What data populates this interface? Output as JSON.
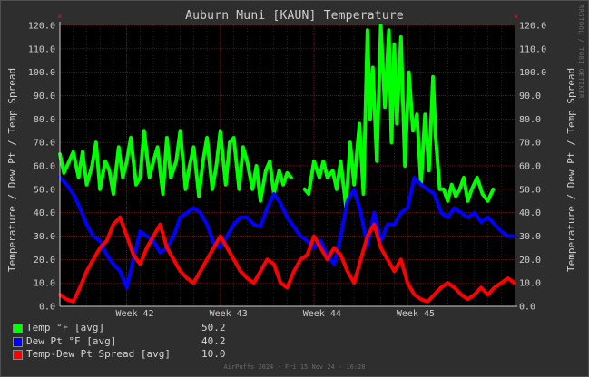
{
  "chart_data": {
    "type": "line",
    "title": "Auburn Muni [KAUN] Temperature",
    "ylabel": "Temperature / Dew Pt / Temp Spread",
    "ylim": [
      0,
      120
    ],
    "yticks": [
      "0.0",
      "10.0",
      "20.0",
      "30.0",
      "40.0",
      "50.0",
      "60.0",
      "70.0",
      "80.0",
      "90.0",
      "100.0",
      "110.0",
      "120.0"
    ],
    "xlim": [
      0,
      34
    ],
    "xticks": [
      {
        "label": "Week 42",
        "x": 5
      },
      {
        "label": "Week 43",
        "x": 12
      },
      {
        "label": "Week 44",
        "x": 19
      },
      {
        "label": "Week 45",
        "x": 26
      }
    ],
    "grid": true,
    "legend_position": "bottom-left",
    "series": [
      {
        "name": "Temp °F [avg]",
        "color": "#00ff00",
        "summary": "50.2",
        "values": [
          [
            0,
            65
          ],
          [
            0.3,
            57
          ],
          [
            0.7,
            62
          ],
          [
            1,
            66
          ],
          [
            1.4,
            55
          ],
          [
            1.7,
            66
          ],
          [
            2,
            52
          ],
          [
            2.4,
            60
          ],
          [
            2.7,
            70
          ],
          [
            3,
            50
          ],
          [
            3.4,
            62
          ],
          [
            3.7,
            58
          ],
          [
            4,
            48
          ],
          [
            4.4,
            68
          ],
          [
            4.7,
            55
          ],
          [
            5,
            62
          ],
          [
            5.3,
            72
          ],
          [
            5.7,
            52
          ],
          [
            6,
            55
          ],
          [
            6.3,
            75
          ],
          [
            6.7,
            55
          ],
          [
            7,
            62
          ],
          [
            7.3,
            68
          ],
          [
            7.7,
            48
          ],
          [
            8,
            72
          ],
          [
            8.3,
            55
          ],
          [
            8.7,
            62
          ],
          [
            9,
            75
          ],
          [
            9.4,
            50
          ],
          [
            9.7,
            60
          ],
          [
            10,
            68
          ],
          [
            10.4,
            47
          ],
          [
            10.7,
            62
          ],
          [
            11,
            72
          ],
          [
            11.4,
            50
          ],
          [
            11.7,
            60
          ],
          [
            12,
            75
          ],
          [
            12.4,
            52
          ],
          [
            12.7,
            70
          ],
          [
            13,
            72
          ],
          [
            13.4,
            50
          ],
          [
            13.7,
            68
          ],
          [
            14,
            62
          ],
          [
            14.4,
            50
          ],
          [
            14.7,
            60
          ],
          [
            15,
            45
          ],
          [
            15.4,
            58
          ],
          [
            15.7,
            62
          ],
          [
            16,
            48
          ],
          [
            16.4,
            58
          ],
          [
            16.7,
            52
          ],
          [
            17,
            57
          ],
          [
            17.3,
            55
          ],
          [
            18.3,
            50
          ],
          [
            18.6,
            48
          ],
          [
            19,
            62
          ],
          [
            19.4,
            55
          ],
          [
            19.7,
            62
          ],
          [
            20,
            55
          ],
          [
            20.4,
            58
          ],
          [
            20.7,
            50
          ],
          [
            21,
            62
          ],
          [
            21.4,
            42
          ],
          [
            21.7,
            70
          ],
          [
            22,
            52
          ],
          [
            22.4,
            78
          ],
          [
            22.7,
            48
          ],
          [
            23,
            118
          ],
          [
            23.2,
            80
          ],
          [
            23.4,
            102
          ],
          [
            23.7,
            62
          ],
          [
            24,
            120
          ],
          [
            24.3,
            85
          ],
          [
            24.6,
            118
          ],
          [
            24.8,
            70
          ],
          [
            25,
            112
          ],
          [
            25.2,
            78
          ],
          [
            25.5,
            115
          ],
          [
            25.8,
            60
          ],
          [
            26.1,
            100
          ],
          [
            26.4,
            75
          ],
          [
            26.7,
            82
          ],
          [
            27,
            52
          ],
          [
            27.3,
            82
          ],
          [
            27.6,
            58
          ],
          [
            27.9,
            98
          ],
          [
            28.1,
            72
          ],
          [
            28.4,
            50
          ],
          [
            28.7,
            50
          ],
          [
            29,
            45
          ],
          [
            29.3,
            52
          ],
          [
            29.6,
            47
          ],
          [
            29.9,
            50
          ],
          [
            30.2,
            55
          ],
          [
            30.5,
            45
          ],
          [
            30.8,
            50
          ],
          [
            31.2,
            55
          ],
          [
            31.6,
            48
          ],
          [
            32,
            45
          ],
          [
            32.4,
            50
          ]
        ]
      },
      {
        "name": "Dew Pt °F [avg]",
        "color": "#0000ff",
        "summary": "40.2",
        "values": [
          [
            0,
            55
          ],
          [
            0.5,
            52
          ],
          [
            1,
            48
          ],
          [
            1.5,
            42
          ],
          [
            2,
            35
          ],
          [
            2.5,
            30
          ],
          [
            3,
            28
          ],
          [
            3.5,
            22
          ],
          [
            4,
            18
          ],
          [
            4.5,
            15
          ],
          [
            5,
            8
          ],
          [
            5.5,
            20
          ],
          [
            6,
            32
          ],
          [
            6.5,
            30
          ],
          [
            7,
            28
          ],
          [
            7.5,
            23
          ],
          [
            8,
            25
          ],
          [
            8.5,
            30
          ],
          [
            9,
            38
          ],
          [
            9.5,
            40
          ],
          [
            10,
            42
          ],
          [
            10.5,
            40
          ],
          [
            11,
            35
          ],
          [
            11.5,
            27
          ],
          [
            12,
            25
          ],
          [
            12.5,
            30
          ],
          [
            13,
            35
          ],
          [
            13.5,
            38
          ],
          [
            14,
            38
          ],
          [
            14.5,
            35
          ],
          [
            15,
            34
          ],
          [
            15.5,
            42
          ],
          [
            16,
            48
          ],
          [
            16.5,
            44
          ],
          [
            17,
            38
          ],
          [
            17.5,
            34
          ],
          [
            18,
            30
          ],
          [
            18.5,
            28
          ],
          [
            19,
            25
          ],
          [
            19.5,
            28
          ],
          [
            20,
            22
          ],
          [
            20.5,
            18
          ],
          [
            21,
            30
          ],
          [
            21.5,
            45
          ],
          [
            22,
            50
          ],
          [
            22.5,
            40
          ],
          [
            23,
            26
          ],
          [
            23.5,
            40
          ],
          [
            24,
            28
          ],
          [
            24.5,
            35
          ],
          [
            25,
            35
          ],
          [
            25.5,
            40
          ],
          [
            26,
            42
          ],
          [
            26.5,
            55
          ],
          [
            27,
            52
          ],
          [
            27.5,
            50
          ],
          [
            28,
            48
          ],
          [
            28.5,
            40
          ],
          [
            29,
            38
          ],
          [
            29.5,
            42
          ],
          [
            30,
            40
          ],
          [
            30.5,
            38
          ],
          [
            31,
            40
          ],
          [
            31.5,
            36
          ],
          [
            32,
            38
          ],
          [
            32.5,
            35
          ],
          [
            33,
            32
          ],
          [
            33.5,
            30
          ],
          [
            34,
            30
          ]
        ]
      },
      {
        "name": "Temp-Dew Pt Spread [avg]",
        "color": "#ff0000",
        "summary": "10.0",
        "values": [
          [
            0,
            5
          ],
          [
            0.5,
            3
          ],
          [
            1,
            2
          ],
          [
            1.5,
            8
          ],
          [
            2,
            15
          ],
          [
            2.5,
            20
          ],
          [
            3,
            25
          ],
          [
            3.5,
            28
          ],
          [
            4,
            35
          ],
          [
            4.5,
            38
          ],
          [
            5,
            30
          ],
          [
            5.5,
            22
          ],
          [
            6,
            18
          ],
          [
            6.5,
            25
          ],
          [
            7,
            30
          ],
          [
            7.5,
            35
          ],
          [
            8,
            25
          ],
          [
            8.5,
            20
          ],
          [
            9,
            15
          ],
          [
            9.5,
            12
          ],
          [
            10,
            10
          ],
          [
            10.5,
            15
          ],
          [
            11,
            20
          ],
          [
            11.5,
            25
          ],
          [
            12,
            30
          ],
          [
            12.5,
            25
          ],
          [
            13,
            20
          ],
          [
            13.5,
            15
          ],
          [
            14,
            12
          ],
          [
            14.5,
            10
          ],
          [
            15,
            15
          ],
          [
            15.5,
            20
          ],
          [
            16,
            18
          ],
          [
            16.5,
            10
          ],
          [
            17,
            8
          ],
          [
            17.5,
            15
          ],
          [
            18,
            20
          ],
          [
            18.5,
            22
          ],
          [
            19,
            30
          ],
          [
            19.5,
            25
          ],
          [
            20,
            20
          ],
          [
            20.5,
            25
          ],
          [
            21,
            22
          ],
          [
            21.5,
            15
          ],
          [
            22,
            10
          ],
          [
            22.5,
            20
          ],
          [
            23,
            30
          ],
          [
            23.5,
            35
          ],
          [
            24,
            25
          ],
          [
            24.5,
            20
          ],
          [
            25,
            15
          ],
          [
            25.5,
            20
          ],
          [
            26,
            10
          ],
          [
            26.5,
            5
          ],
          [
            27,
            3
          ],
          [
            27.5,
            2
          ],
          [
            28,
            5
          ],
          [
            28.5,
            8
          ],
          [
            29,
            10
          ],
          [
            29.5,
            8
          ],
          [
            30,
            5
          ],
          [
            30.5,
            3
          ],
          [
            31,
            5
          ],
          [
            31.5,
            8
          ],
          [
            32,
            5
          ],
          [
            32.5,
            8
          ],
          [
            33,
            10
          ],
          [
            33.5,
            12
          ],
          [
            34,
            10
          ]
        ]
      }
    ]
  },
  "legend": [
    {
      "label": "Temp °F [avg]",
      "value": "50.2",
      "color": "#00ff00"
    },
    {
      "label": "Dew Pt °F [avg]",
      "value": "40.2",
      "color": "#0000ff"
    },
    {
      "label": "Temp-Dew Pt Spread [avg]",
      "value": "10.0",
      "color": "#ff0000"
    }
  ],
  "watermark": "RRDTOOL / TOBI OETIKER",
  "footer": "AirPuffs 2024 - Fri 15 Nov 24 - 16:28"
}
